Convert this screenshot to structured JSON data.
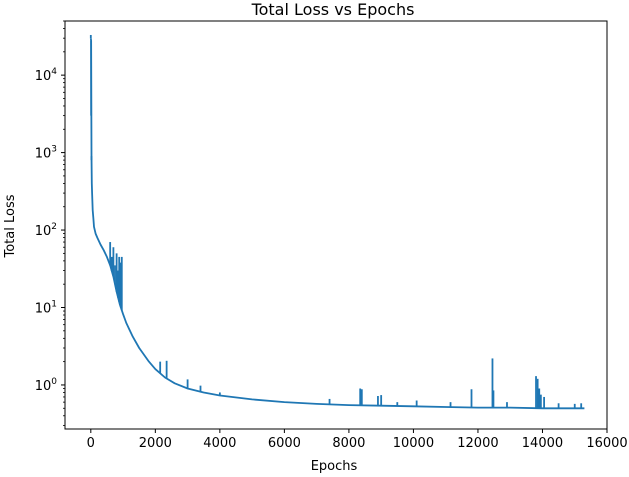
{
  "chart_data": {
    "type": "line",
    "title": "Total Loss vs Epochs",
    "xlabel": "Epochs",
    "ylabel": "Total Loss",
    "xlim": [
      -800,
      16000
    ],
    "ylim": [
      0.27,
      50000
    ],
    "yscale": "log",
    "grid": false,
    "color": "#1f77b4",
    "x_ticks": [
      0,
      2000,
      4000,
      6000,
      8000,
      10000,
      12000,
      14000,
      16000
    ],
    "x_tick_labels": [
      "0",
      "2000",
      "4000",
      "6000",
      "8000",
      "10000",
      "12000",
      "14000",
      "16000"
    ],
    "y_ticks": [
      1,
      10,
      100,
      1000,
      10000
    ],
    "y_tick_labels": [
      {
        "base": "10",
        "exp": "0"
      },
      {
        "base": "10",
        "exp": "1"
      },
      {
        "base": "10",
        "exp": "2"
      },
      {
        "base": "10",
        "exp": "3"
      },
      {
        "base": "10",
        "exp": "4"
      }
    ],
    "series": [
      {
        "x": [
          0,
          10,
          20,
          30,
          40,
          60,
          80,
          100,
          150,
          200,
          300,
          400,
          500,
          600,
          700,
          800,
          900,
          1000,
          1100,
          1300,
          1500,
          1800,
          2000,
          2300,
          2600,
          3000,
          3500,
          4000,
          5000,
          6000,
          7000,
          8000,
          9000,
          10000,
          11000,
          12000,
          13000,
          14000,
          15000,
          15300
        ],
        "y": [
          30000,
          28000,
          900,
          400,
          300,
          180,
          140,
          110,
          90,
          80,
          65,
          55,
          45,
          35,
          25,
          16,
          11,
          8.2,
          6.3,
          4.2,
          3.0,
          2.0,
          1.6,
          1.25,
          1.05,
          0.9,
          0.8,
          0.73,
          0.65,
          0.6,
          0.57,
          0.55,
          0.54,
          0.53,
          0.52,
          0.51,
          0.51,
          0.5,
          0.5,
          0.5
        ]
      }
    ],
    "spikes": [
      {
        "x": 0,
        "y": 33000
      },
      {
        "x": 10,
        "y": 3000
      },
      {
        "x": 20,
        "y": 800
      },
      {
        "x": 600,
        "y": 70
      },
      {
        "x": 650,
        "y": 45
      },
      {
        "x": 700,
        "y": 60
      },
      {
        "x": 750,
        "y": 35
      },
      {
        "x": 800,
        "y": 50
      },
      {
        "x": 850,
        "y": 30
      },
      {
        "x": 880,
        "y": 45
      },
      {
        "x": 930,
        "y": 38
      },
      {
        "x": 960,
        "y": 45
      },
      {
        "x": 2150,
        "y": 2.0
      },
      {
        "x": 2350,
        "y": 2.05
      },
      {
        "x": 3000,
        "y": 1.18
      },
      {
        "x": 3400,
        "y": 0.98
      },
      {
        "x": 4000,
        "y": 0.8
      },
      {
        "x": 7400,
        "y": 0.66
      },
      {
        "x": 8350,
        "y": 0.9
      },
      {
        "x": 8400,
        "y": 0.88
      },
      {
        "x": 8900,
        "y": 0.72
      },
      {
        "x": 9000,
        "y": 0.74
      },
      {
        "x": 9500,
        "y": 0.6
      },
      {
        "x": 10100,
        "y": 0.63
      },
      {
        "x": 11150,
        "y": 0.6
      },
      {
        "x": 11800,
        "y": 0.88
      },
      {
        "x": 12450,
        "y": 2.2
      },
      {
        "x": 12480,
        "y": 0.85
      },
      {
        "x": 12900,
        "y": 0.6
      },
      {
        "x": 13800,
        "y": 1.3
      },
      {
        "x": 13850,
        "y": 1.2
      },
      {
        "x": 13900,
        "y": 0.9
      },
      {
        "x": 13950,
        "y": 0.75
      },
      {
        "x": 14050,
        "y": 0.7
      },
      {
        "x": 14500,
        "y": 0.58
      },
      {
        "x": 15000,
        "y": 0.57
      },
      {
        "x": 15200,
        "y": 0.58
      }
    ]
  }
}
